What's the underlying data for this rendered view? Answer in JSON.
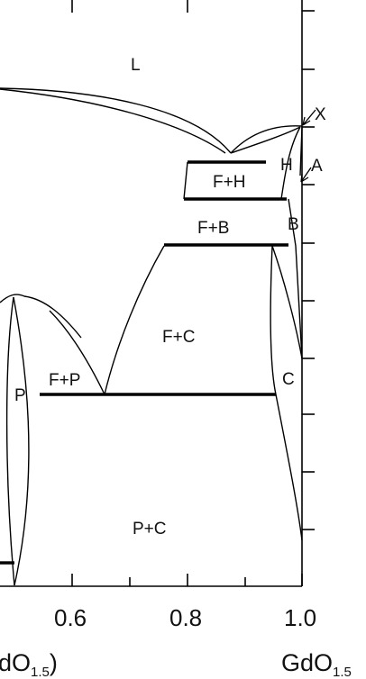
{
  "diagram": {
    "phase_labels": {
      "L": "L",
      "F_H": "F+H",
      "F_B": "F+B",
      "F_C": "F+C",
      "F_P": "F+P",
      "P": "P",
      "P_C": "P+C",
      "H": "H",
      "B": "B",
      "C": "C",
      "X": "X",
      "A": "A"
    },
    "x_ticks": [
      "0.6",
      "0.8",
      "1.0"
    ],
    "x_axis_left": {
      "prefix": "dO",
      "sub": "1.5",
      "suffix": ")"
    },
    "x_axis_right": {
      "prefix": "GdO",
      "sub": "1.5"
    }
  }
}
